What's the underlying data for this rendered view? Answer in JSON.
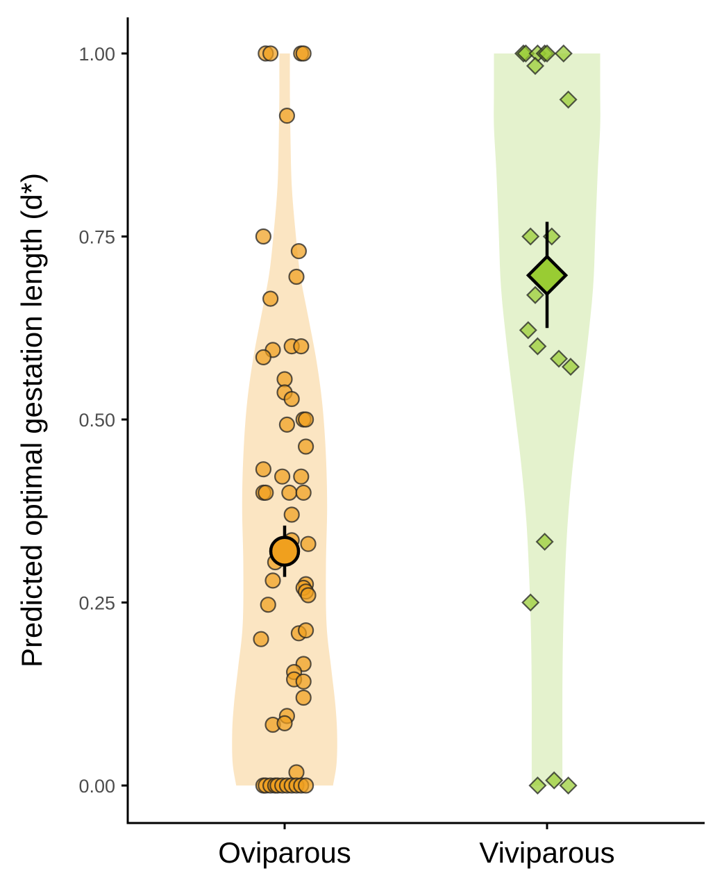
{
  "chart_data": {
    "type": "scatter",
    "subtype": "violin-jitter",
    "title": "",
    "xlabel": "",
    "ylabel": "Predicted optimal gestation length (d*)",
    "ylim": [
      -0.05,
      1.05
    ],
    "yticks": [
      0,
      0.25,
      0.5,
      0.75,
      1.0
    ],
    "ytick_labels": [
      "0.00",
      "0.25",
      "0.50",
      "0.75",
      "1.00"
    ],
    "categories": [
      "Oviparous",
      "Viviparous"
    ],
    "grid": false,
    "legend": "none",
    "series": [
      {
        "category": "Oviparous",
        "marker": "circle",
        "color": "#f0a01e",
        "violin_color": "#fbe5c2",
        "mean": 0.32,
        "error": [
          0.285,
          0.355
        ],
        "points": [
          {
            "dx": -0.08,
            "y": 1.0
          },
          {
            "dx": -0.06,
            "y": 1.0
          },
          {
            "dx": 0.07,
            "y": 1.0
          },
          {
            "dx": 0.08,
            "y": 1.0
          },
          {
            "dx": 0.01,
            "y": 0.915
          },
          {
            "dx": -0.09,
            "y": 0.75
          },
          {
            "dx": 0.06,
            "y": 0.73
          },
          {
            "dx": 0.05,
            "y": 0.695
          },
          {
            "dx": -0.06,
            "y": 0.665
          },
          {
            "dx": -0.05,
            "y": 0.595
          },
          {
            "dx": 0.03,
            "y": 0.6
          },
          {
            "dx": 0.07,
            "y": 0.6
          },
          {
            "dx": -0.09,
            "y": 0.585
          },
          {
            "dx": 0.0,
            "y": 0.555
          },
          {
            "dx": 0.0,
            "y": 0.537
          },
          {
            "dx": 0.03,
            "y": 0.528
          },
          {
            "dx": 0.08,
            "y": 0.5
          },
          {
            "dx": 0.09,
            "y": 0.5
          },
          {
            "dx": 0.01,
            "y": 0.493
          },
          {
            "dx": 0.09,
            "y": 0.463
          },
          {
            "dx": -0.09,
            "y": 0.432
          },
          {
            "dx": -0.01,
            "y": 0.422
          },
          {
            "dx": 0.07,
            "y": 0.422
          },
          {
            "dx": -0.09,
            "y": 0.4
          },
          {
            "dx": -0.08,
            "y": 0.4
          },
          {
            "dx": 0.02,
            "y": 0.4
          },
          {
            "dx": 0.08,
            "y": 0.4
          },
          {
            "dx": 0.03,
            "y": 0.37
          },
          {
            "dx": 0.03,
            "y": 0.335
          },
          {
            "dx": 0.1,
            "y": 0.33
          },
          {
            "dx": -0.04,
            "y": 0.305
          },
          {
            "dx": -0.05,
            "y": 0.28
          },
          {
            "dx": 0.09,
            "y": 0.275
          },
          {
            "dx": 0.08,
            "y": 0.27
          },
          {
            "dx": 0.09,
            "y": 0.265
          },
          {
            "dx": 0.1,
            "y": 0.26
          },
          {
            "dx": -0.07,
            "y": 0.247
          },
          {
            "dx": 0.06,
            "y": 0.208
          },
          {
            "dx": 0.09,
            "y": 0.212
          },
          {
            "dx": -0.1,
            "y": 0.2
          },
          {
            "dx": 0.08,
            "y": 0.166
          },
          {
            "dx": 0.04,
            "y": 0.155
          },
          {
            "dx": 0.04,
            "y": 0.145
          },
          {
            "dx": 0.08,
            "y": 0.142
          },
          {
            "dx": 0.08,
            "y": 0.12
          },
          {
            "dx": 0.01,
            "y": 0.095
          },
          {
            "dx": -0.05,
            "y": 0.083
          },
          {
            "dx": 0.0,
            "y": 0.085
          },
          {
            "dx": 0.05,
            "y": 0.018
          },
          {
            "dx": -0.09,
            "y": 0.0
          },
          {
            "dx": -0.08,
            "y": 0.0
          },
          {
            "dx": -0.06,
            "y": 0.0
          },
          {
            "dx": -0.04,
            "y": 0.0
          },
          {
            "dx": -0.03,
            "y": 0.0
          },
          {
            "dx": -0.01,
            "y": 0.0
          },
          {
            "dx": 0.01,
            "y": 0.0
          },
          {
            "dx": 0.03,
            "y": 0.0
          },
          {
            "dx": 0.05,
            "y": 0.0
          },
          {
            "dx": 0.07,
            "y": 0.0
          },
          {
            "dx": 0.09,
            "y": 0.0
          }
        ],
        "violin": [
          {
            "y": 0.0,
            "w": 0.41
          },
          {
            "y": 0.03,
            "w": 0.44
          },
          {
            "y": 0.07,
            "w": 0.445
          },
          {
            "y": 0.11,
            "w": 0.43
          },
          {
            "y": 0.16,
            "w": 0.395
          },
          {
            "y": 0.22,
            "w": 0.355
          },
          {
            "y": 0.3,
            "w": 0.35
          },
          {
            "y": 0.38,
            "w": 0.36
          },
          {
            "y": 0.45,
            "w": 0.35
          },
          {
            "y": 0.52,
            "w": 0.32
          },
          {
            "y": 0.58,
            "w": 0.27
          },
          {
            "y": 0.64,
            "w": 0.2
          },
          {
            "y": 0.7,
            "w": 0.13
          },
          {
            "y": 0.76,
            "w": 0.09
          },
          {
            "y": 0.82,
            "w": 0.06
          },
          {
            "y": 0.88,
            "w": 0.05
          },
          {
            "y": 0.94,
            "w": 0.045
          },
          {
            "y": 1.0,
            "w": 0.045
          }
        ]
      },
      {
        "category": "Viviparous",
        "marker": "diamond",
        "color": "#99cc33",
        "violin_color": "#e4f2cd",
        "mean": 0.697,
        "error": [
          0.625,
          0.77
        ],
        "points": [
          {
            "dx": -0.1,
            "y": 1.0
          },
          {
            "dx": -0.09,
            "y": 1.0
          },
          {
            "dx": -0.04,
            "y": 1.0
          },
          {
            "dx": -0.01,
            "y": 1.0
          },
          {
            "dx": 0.0,
            "y": 1.0
          },
          {
            "dx": 0.07,
            "y": 1.0
          },
          {
            "dx": -0.05,
            "y": 0.983
          },
          {
            "dx": 0.09,
            "y": 0.937
          },
          {
            "dx": -0.07,
            "y": 0.75
          },
          {
            "dx": 0.02,
            "y": 0.75
          },
          {
            "dx": -0.05,
            "y": 0.67
          },
          {
            "dx": -0.08,
            "y": 0.622
          },
          {
            "dx": -0.04,
            "y": 0.6
          },
          {
            "dx": 0.05,
            "y": 0.583
          },
          {
            "dx": 0.1,
            "y": 0.572
          },
          {
            "dx": -0.01,
            "y": 0.333
          },
          {
            "dx": -0.07,
            "y": 0.25
          },
          {
            "dx": -0.04,
            "y": 0.0
          },
          {
            "dx": 0.03,
            "y": 0.007
          },
          {
            "dx": 0.09,
            "y": 0.0
          }
        ],
        "violin": [
          {
            "y": 0.0,
            "w": 0.13
          },
          {
            "y": 0.05,
            "w": 0.13
          },
          {
            "y": 0.12,
            "w": 0.13
          },
          {
            "y": 0.2,
            "w": 0.135
          },
          {
            "y": 0.28,
            "w": 0.15
          },
          {
            "y": 0.36,
            "w": 0.175
          },
          {
            "y": 0.44,
            "w": 0.22
          },
          {
            "y": 0.52,
            "w": 0.28
          },
          {
            "y": 0.6,
            "w": 0.34
          },
          {
            "y": 0.68,
            "w": 0.39
          },
          {
            "y": 0.76,
            "w": 0.41
          },
          {
            "y": 0.84,
            "w": 0.43
          },
          {
            "y": 0.9,
            "w": 0.45
          },
          {
            "y": 0.95,
            "w": 0.45
          },
          {
            "y": 1.0,
            "w": 0.45
          }
        ]
      }
    ]
  }
}
